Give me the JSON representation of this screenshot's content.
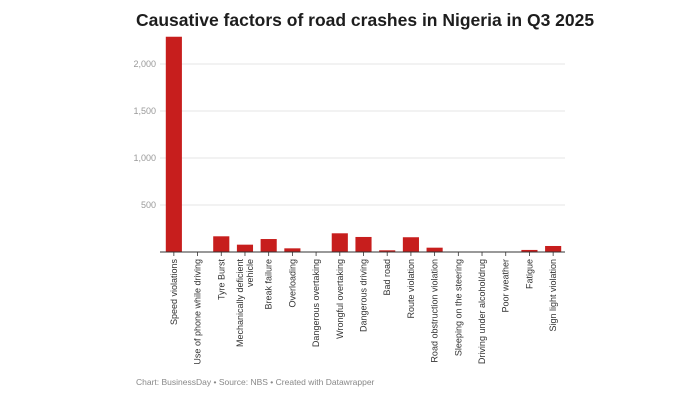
{
  "chart_data": {
    "type": "bar",
    "title": "Causative factors of road crashes in Nigeria in Q3 2025",
    "xlabel": "",
    "ylabel": "",
    "ylim": [
      0,
      2300
    ],
    "yticks": [
      500,
      1000,
      1500,
      2000
    ],
    "ytick_labels": [
      "500",
      "1,000",
      "1,500",
      "2,000"
    ],
    "grid": true,
    "bar_color": "#c71e1d",
    "categories": [
      "Speed violations",
      "Use of phone while driving",
      "Tyre Burst",
      "Mechanically deficient vehicle",
      "Break failure",
      "Overloading",
      "Dangerous overtaking",
      "Wrongful overtaking",
      "Dangerous driving",
      "Bad road",
      "Route violation",
      "Road obstruction violation",
      "Sleeping on the steering",
      "Driving under alcohol/drug",
      "Poor weather",
      "Fatigue",
      "Sign light violation"
    ],
    "values": [
      2290,
      5,
      167,
      78,
      138,
      39,
      0,
      199,
      160,
      18,
      157,
      46,
      0,
      3,
      0,
      22,
      64
    ]
  },
  "footer": "Chart: BusinessDay • Source: NBS • Created with Datawrapper"
}
